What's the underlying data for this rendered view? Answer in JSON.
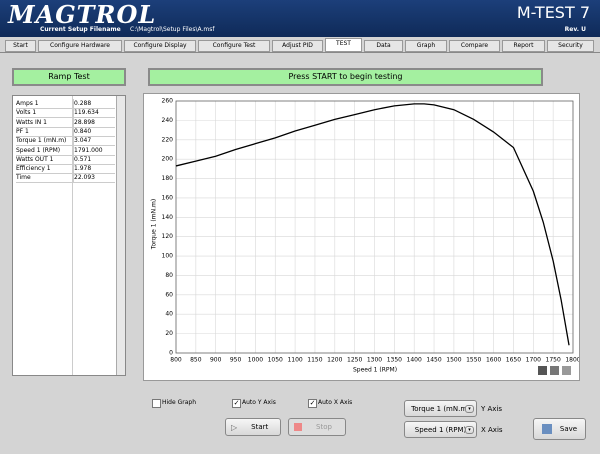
{
  "header": {
    "logo": "MAGTROL",
    "filename_label": "Current Setup Filename",
    "filename": "C:\\Magtrol\\Setup Files\\A.msf",
    "product": "M-TEST 7",
    "revision": "Rev. U"
  },
  "tabs": {
    "items": [
      "Start",
      "Configure Hardware",
      "Configure Display",
      "Configure Test",
      "Adjust PID",
      "TEST",
      "Data",
      "Graph",
      "Compare",
      "Report",
      "Security"
    ],
    "active": 5
  },
  "status": {
    "mode": "Ramp Test",
    "message": "Press START to begin testing"
  },
  "readings": {
    "rows": [
      [
        "Amps 1",
        "0.288"
      ],
      [
        "Volts 1",
        "119.634"
      ],
      [
        "Watts IN 1",
        "28.898"
      ],
      [
        "PF 1",
        "0.840"
      ],
      [
        "Torque 1 (mN.m)",
        "3.047"
      ],
      [
        "Speed 1 (RPM)",
        "1791.000"
      ],
      [
        "Watts OUT 1",
        "0.571"
      ],
      [
        "Efficiency 1",
        "1.978"
      ],
      [
        "Time",
        "22.093"
      ]
    ]
  },
  "chart_data": {
    "type": "line",
    "x_label": "Speed 1 (RPM)",
    "y_label": "Torque 1 (mN.m)",
    "x": [
      800,
      850,
      900,
      950,
      1000,
      1050,
      1100,
      1150,
      1200,
      1250,
      1300,
      1350,
      1400,
      1425,
      1450,
      1500,
      1550,
      1600,
      1650,
      1700,
      1725,
      1750,
      1770,
      1790
    ],
    "series": [
      {
        "color": "#000000",
        "values": [
          193,
          198,
          203,
          210,
          216,
          222,
          229,
          235,
          241,
          246,
          251,
          255,
          257,
          257,
          256,
          251,
          241,
          228,
          212,
          167,
          135,
          95,
          55,
          8
        ]
      }
    ],
    "xlim": [
      800,
      1800
    ],
    "xticks": [
      800,
      850,
      900,
      950,
      1000,
      1050,
      1100,
      1150,
      1200,
      1250,
      1300,
      1350,
      1400,
      1450,
      1500,
      1550,
      1600,
      1650,
      1700,
      1750,
      1800
    ],
    "ylim": [
      0,
      260
    ],
    "yticks": [
      0,
      20,
      40,
      60,
      80,
      100,
      120,
      140,
      160,
      180,
      200,
      220,
      240,
      260
    ],
    "grid": true
  },
  "controls": {
    "checkboxes": [
      {
        "label": "Hide Graph",
        "checked": false
      },
      {
        "label": "Auto Y Axis",
        "checked": true
      },
      {
        "label": "Auto X Axis",
        "checked": true
      }
    ],
    "buttons": {
      "start": "Start",
      "stop": "Stop",
      "save": "Save"
    },
    "y_axis": {
      "selection": "Torque 1 (mN.m)",
      "label": "Y Axis"
    },
    "x_axis": {
      "selection": "Speed 1 (RPM)",
      "label": "X Axis"
    }
  }
}
